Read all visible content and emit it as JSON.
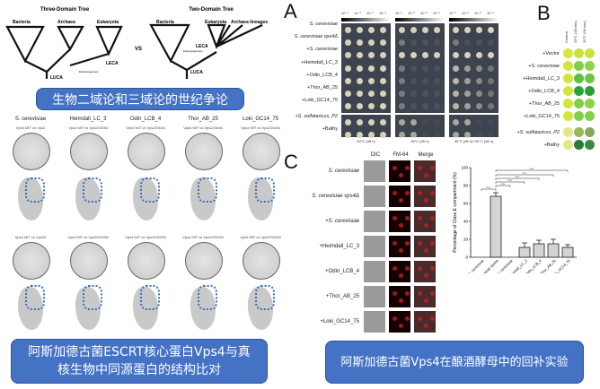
{
  "trees": {
    "three_title": "Three-Domain Tree",
    "two_title": "Two-Domain Tree",
    "vs": "VS",
    "three_labels": [
      "Bacteria",
      "Archaea",
      "Eukaryota",
      "LECA",
      "LUCA",
      "Eukaryogenesis"
    ],
    "two_labels": [
      "Bacteria",
      "Eukaryota",
      "Archaea lineages",
      "LECA",
      "Eukaryogenesis",
      "LUCA"
    ]
  },
  "banner1": "生物二域论和三域论的世纪争论",
  "structures": {
    "species": [
      "S. cerevisiae",
      "Heimdall_LC_3",
      "Odin_LCB_4",
      "Thor_AB_25",
      "Loki_GC14_75"
    ],
    "row1_sub": [
      "Vps4 MIT vs Vps2",
      "Vps4 MIT vs Vps2/24/46",
      "Vps4 MIT vs Vps2/24/46",
      "Vps4 MIT vs Vps2/24/46",
      "Vps4 MIT vs Vps2/24/46"
    ],
    "row2_sub": [
      "Vps4 MIT vs Vps20",
      "Vps4 MIT vs Vps20/32/60",
      "Vps4 MIT vs Vps20/32/60",
      "Vps4 MIT vs Vps20/32/60",
      "Vps4 MIT vs Vps20/32/60"
    ]
  },
  "banner2": "阿斯加德古菌ESCRT核心蛋白Vps4与真核生物中同源蛋白的结构比对",
  "panelA": {
    "label": "A",
    "dilutions": [
      "10⁻¹",
      "10⁻²",
      "10⁻³",
      "10⁻⁴"
    ],
    "strains": [
      "S. cerevisiae",
      "S. cerevisiae vps4Δ",
      "+S. cerevisiae",
      "+Heimdall_LC_3",
      "+Odin_LCB_4",
      "+Thor_AB_25",
      "+Loki_GC14_75",
      "+S. solfataricus_P2",
      "+Bathy"
    ],
    "conditions": [
      "30°C (48 h)",
      "39°C (96 h)",
      "39°C (96 h)+30°C (48 h)"
    ]
  },
  "panelB": {
    "label": "B",
    "columns": [
      "Control",
      "39°C (48 min)",
      "39°C (96 min)"
    ],
    "strains": [
      "+Vector",
      "+S. cerevisiae",
      "+Heimdall_LC_3",
      "+Odin_LCB_4",
      "+Thor_AB_25",
      "+Loki_GC14_75",
      "+S. solfataricus_P2",
      "+Bathy"
    ]
  },
  "panelC": {
    "label": "C",
    "columns": [
      "DIC",
      "FM-64",
      "Merge"
    ],
    "strains": [
      "S. cerevisiae",
      "S. cerevisiae vps4Δ",
      "+S. cerevisiae",
      "+Heimdall_LC_3",
      "+Odin_LCB_4",
      "+Thor_AB_25",
      "+Loki_GC14_75"
    ]
  },
  "chart_data": {
    "type": "bar",
    "ylabel": "Percentage of Class E compartment (%)",
    "ylim": [
      0,
      100
    ],
    "yticks": [
      0,
      20,
      40,
      60,
      80,
      100
    ],
    "categories": [
      "S. cerevisiae",
      "S. cerevisiae vps4Δ",
      "+S. cerevisiae",
      "+Heimdall_LC_3",
      "+Odin_LCB_4",
      "+Thor_AB_25",
      "+Loki_GC14_75"
    ],
    "values": [
      0,
      68,
      0,
      11,
      15,
      15,
      11
    ],
    "errors": [
      0,
      4,
      0,
      5,
      4,
      5,
      3
    ],
    "significance": "n.s."
  },
  "banner3": "阿斯加德古菌Vps4在酿酒酵母中的回补实验",
  "colors": {
    "banner": "#4472c4",
    "plate": "#3d4450",
    "bar": "#d4d4d4"
  }
}
